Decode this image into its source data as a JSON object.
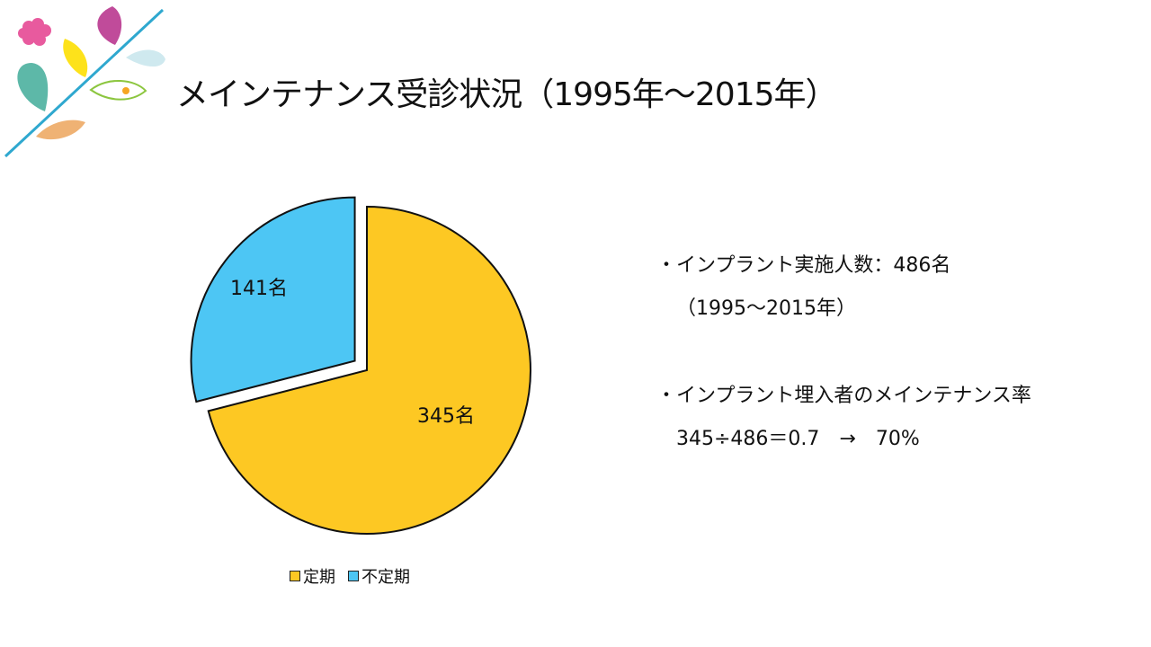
{
  "title": "メインテナンス受診状況（1995年～2015年）",
  "chart_data": {
    "type": "pie",
    "categories": [
      "定期",
      "不定期"
    ],
    "values": [
      345,
      141
    ],
    "data_labels": [
      "345名",
      "141名"
    ],
    "colors": [
      "#FDC823",
      "#4DC6F4"
    ],
    "exploded": [
      "不定期"
    ],
    "legend_position": "bottom"
  },
  "notes": {
    "line1": "・インプラント実施人数：486名",
    "line2": "（1995～2015年）",
    "line3": "・インプラント埋入者のメインテナンス率",
    "line4": "345÷486＝0.7　→　70%"
  }
}
